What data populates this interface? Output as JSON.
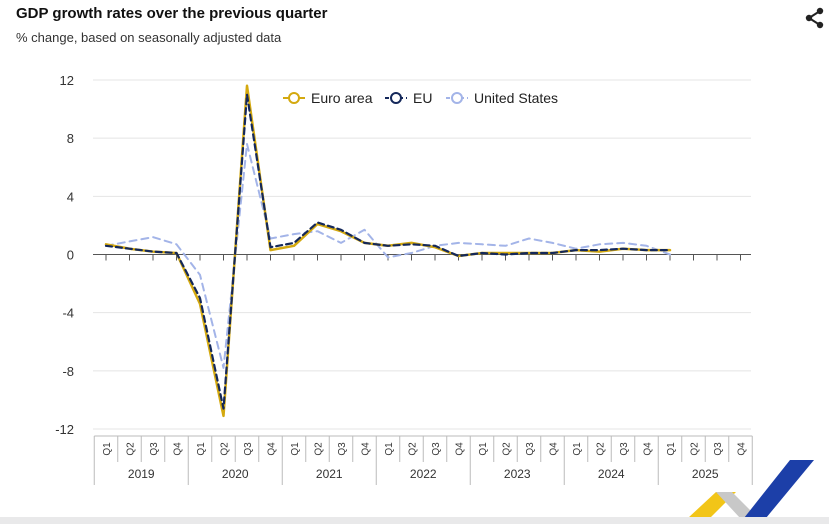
{
  "header": {
    "title": "GDP growth rates over the previous quarter",
    "subtitle": "% change, based on seasonally adjusted data",
    "share_icon": "share-icon"
  },
  "colors": {
    "euro_area": "#d4a90f",
    "eu": "#14285a",
    "us": "#a3b4e8",
    "grid": "#e4e4e4",
    "axis": "#555555"
  },
  "chart_data": {
    "type": "line",
    "title": "GDP growth rates over the previous quarter",
    "subtitle": "% change, based on seasonally adjusted data",
    "ylim": [
      -12,
      12
    ],
    "yticks": [
      "12",
      "8",
      "4",
      "0",
      "-4",
      "-8",
      "-12"
    ],
    "ytick_values": [
      12,
      8,
      4,
      0,
      -4,
      -8,
      -12
    ],
    "grid": true,
    "legend_position": "top",
    "quarter_labels": [
      "Q1",
      "Q2",
      "Q3",
      "Q4"
    ],
    "years": [
      "2019",
      "2020",
      "2021",
      "2022",
      "2023",
      "2024",
      "2025"
    ],
    "x": [
      "2019-Q1",
      "2019-Q2",
      "2019-Q3",
      "2019-Q4",
      "2020-Q1",
      "2020-Q2",
      "2020-Q3",
      "2020-Q4",
      "2021-Q1",
      "2021-Q2",
      "2021-Q3",
      "2021-Q4",
      "2022-Q1",
      "2022-Q2",
      "2022-Q3",
      "2022-Q4",
      "2023-Q1",
      "2023-Q2",
      "2023-Q3",
      "2023-Q4",
      "2024-Q1",
      "2024-Q2",
      "2024-Q3",
      "2024-Q4",
      "2025-Q1",
      "2025-Q2",
      "2025-Q3",
      "2025-Q4"
    ],
    "series": [
      {
        "name": "Euro area",
        "style": "solid",
        "values": [
          0.7,
          0.4,
          0.2,
          0.1,
          -3.4,
          -11.1,
          11.6,
          0.3,
          0.6,
          2.1,
          1.6,
          0.8,
          0.6,
          0.8,
          0.5,
          -0.1,
          0.1,
          0.1,
          0.1,
          0.1,
          0.3,
          0.2,
          0.4,
          0.3,
          0.3,
          null,
          null,
          null
        ]
      },
      {
        "name": "EU",
        "style": "dashed",
        "values": [
          0.6,
          0.4,
          0.2,
          0.1,
          -3.0,
          -10.6,
          11.0,
          0.5,
          0.8,
          2.2,
          1.7,
          0.8,
          0.6,
          0.7,
          0.6,
          -0.1,
          0.1,
          0.0,
          0.1,
          0.1,
          0.3,
          0.3,
          0.4,
          0.3,
          0.3,
          null,
          null,
          null
        ]
      },
      {
        "name": "United States",
        "style": "dashed",
        "values": [
          0.6,
          0.9,
          1.2,
          0.7,
          -1.4,
          -7.8,
          7.6,
          1.1,
          1.4,
          1.6,
          0.8,
          1.7,
          -0.2,
          0.1,
          0.6,
          0.8,
          0.7,
          0.6,
          1.1,
          0.8,
          0.4,
          0.7,
          0.8,
          0.6,
          0.0,
          null,
          null,
          null
        ]
      }
    ]
  }
}
